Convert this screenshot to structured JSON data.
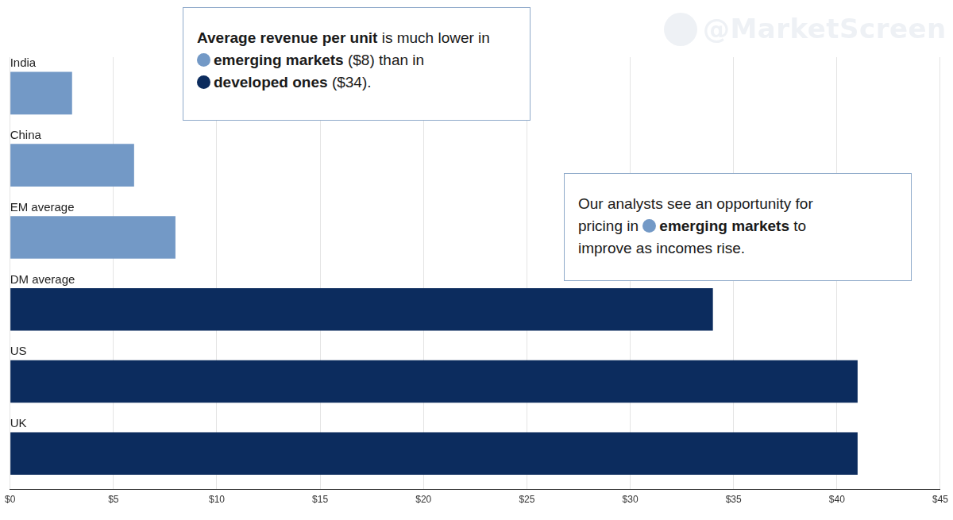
{
  "chart_data": {
    "type": "bar",
    "orientation": "horizontal",
    "categories": [
      "India",
      "China",
      "EM average",
      "DM average",
      "US",
      "UK"
    ],
    "values": [
      3,
      6,
      8,
      34,
      41,
      41
    ],
    "colors": [
      "#7399c6",
      "#7399c6",
      "#7399c6",
      "#0c2c5e",
      "#0c2c5e",
      "#0c2c5e"
    ],
    "xlim": [
      0,
      45
    ],
    "xticks": [
      {
        "value": 0,
        "label": "$0"
      },
      {
        "value": 5,
        "label": "$5"
      },
      {
        "value": 10,
        "label": "$10"
      },
      {
        "value": 15,
        "label": "$15"
      },
      {
        "value": 20,
        "label": "$20"
      },
      {
        "value": 25,
        "label": "$25"
      },
      {
        "value": 30,
        "label": "$30"
      },
      {
        "value": 35,
        "label": "$35"
      },
      {
        "value": 40,
        "label": "$40"
      },
      {
        "value": 45,
        "label": "$45"
      }
    ],
    "grid": true,
    "annotations": [
      [
        [
          {
            "text": "Average revenue per unit"
          },
          " is much lower in"
        ],
        [
          {
            "text": "emerging markets",
            "color": "#7399c6"
          },
          " ($8) than in"
        ],
        [
          {
            "text": "developed ones",
            "color": "#0c2c5e"
          },
          " ($34)."
        ]
      ],
      [
        [
          "Our analysts see an opportunity for"
        ],
        [
          "pricing in ",
          {
            "text": "emerging markets",
            "color": "#7399c6"
          },
          " to"
        ],
        [
          "improve as incomes rise."
        ]
      ]
    ],
    "watermark": "@MarketScreen"
  }
}
